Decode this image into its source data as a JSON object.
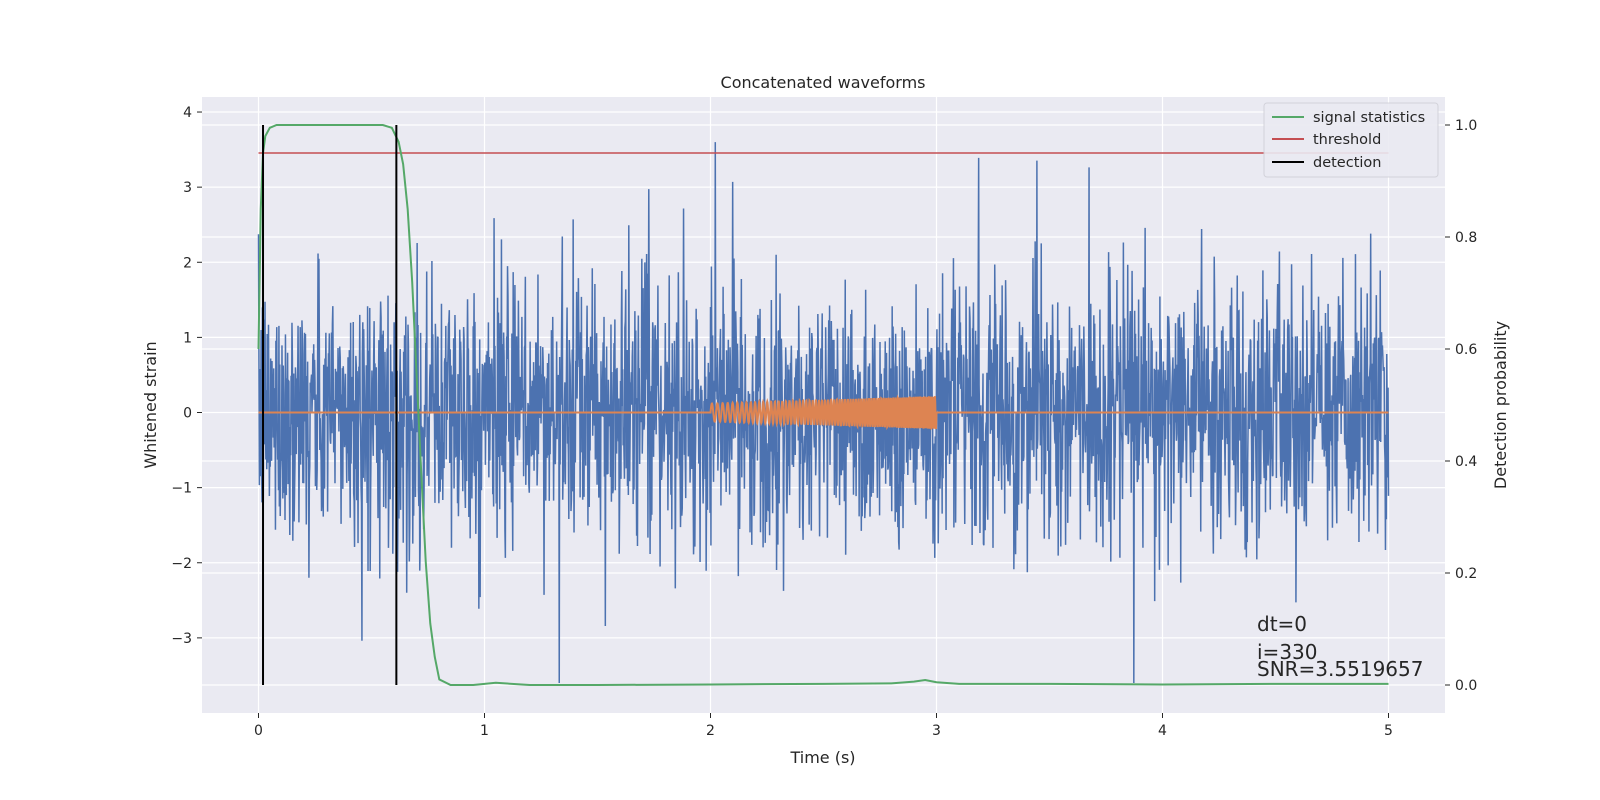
{
  "chart_data": {
    "type": "line",
    "title": "Concatenated waveforms",
    "xlabel": "Time (s)",
    "ylabel": "Whitened strain",
    "ylabel_right": "Detection probability",
    "xlim": [
      -0.25,
      5.25
    ],
    "ylim": [
      -4.0,
      4.2
    ],
    "ylim_right": [
      -0.05,
      1.05
    ],
    "x_ticks": [
      0,
      1,
      2,
      3,
      4,
      5
    ],
    "y_ticks": [
      -3,
      -2,
      -1,
      0,
      1,
      2,
      3,
      4
    ],
    "y_ticks_right": [
      0.0,
      0.2,
      0.4,
      0.6,
      0.8,
      1.0
    ],
    "x_tick_labels": [
      "0",
      "1",
      "2",
      "3",
      "4",
      "5"
    ],
    "y_tick_labels": [
      "−3",
      "−2",
      "−1",
      "0",
      "1",
      "2",
      "3",
      "4"
    ],
    "y_tick_labels_right": [
      "0.0",
      "0.2",
      "0.4",
      "0.6",
      "0.8",
      "1.0"
    ],
    "grid": true,
    "legend_position": "top-right",
    "series": [
      {
        "name": "",
        "axis": "left",
        "color": "#4c72b0",
        "kind": "noise",
        "x_range": [
          0,
          5
        ],
        "approx_std": 0.9,
        "approx_min": -3.6,
        "approx_max": 3.6
      },
      {
        "name": "",
        "axis": "left",
        "color": "#dd8452",
        "kind": "injected-chirp",
        "x_range": [
          0,
          5
        ],
        "chirp_window": [
          2.0,
          3.0
        ],
        "amplitude_start": 0.12,
        "amplitude_end": 0.22
      },
      {
        "name": "signal statistics",
        "axis": "right",
        "color": "#55a868",
        "x": [
          0.0,
          0.01,
          0.02,
          0.03,
          0.05,
          0.08,
          0.12,
          0.2,
          0.4,
          0.55,
          0.59,
          0.62,
          0.64,
          0.66,
          0.68,
          0.7,
          0.72,
          0.74,
          0.76,
          0.78,
          0.8,
          0.85,
          0.95,
          1.05,
          1.2,
          1.5,
          2.0,
          2.5,
          2.8,
          2.9,
          2.95,
          3.0,
          3.1,
          3.5,
          4.0,
          4.5,
          5.0
        ],
        "y": [
          0.6,
          0.85,
          0.95,
          0.98,
          0.995,
          1.0,
          1.0,
          1.0,
          1.0,
          1.0,
          0.995,
          0.97,
          0.93,
          0.85,
          0.72,
          0.55,
          0.38,
          0.22,
          0.11,
          0.05,
          0.01,
          0.0,
          0.0,
          0.004,
          0.0,
          0.0,
          0.001,
          0.002,
          0.003,
          0.006,
          0.009,
          0.005,
          0.002,
          0.002,
          0.001,
          0.002,
          0.002
        ]
      },
      {
        "name": "threshold",
        "axis": "right",
        "color": "#c44e52",
        "x": [
          0,
          5
        ],
        "y": [
          0.95,
          0.95
        ]
      },
      {
        "name": "detection",
        "axis": "right",
        "color": "#000000",
        "kind": "vlines",
        "x": [
          0.02,
          0.61
        ],
        "y_from": 0.0,
        "y_to": 1.0
      }
    ],
    "annotations": [
      "dt=0",
      "i=330",
      "SNR=3.5519657"
    ]
  }
}
